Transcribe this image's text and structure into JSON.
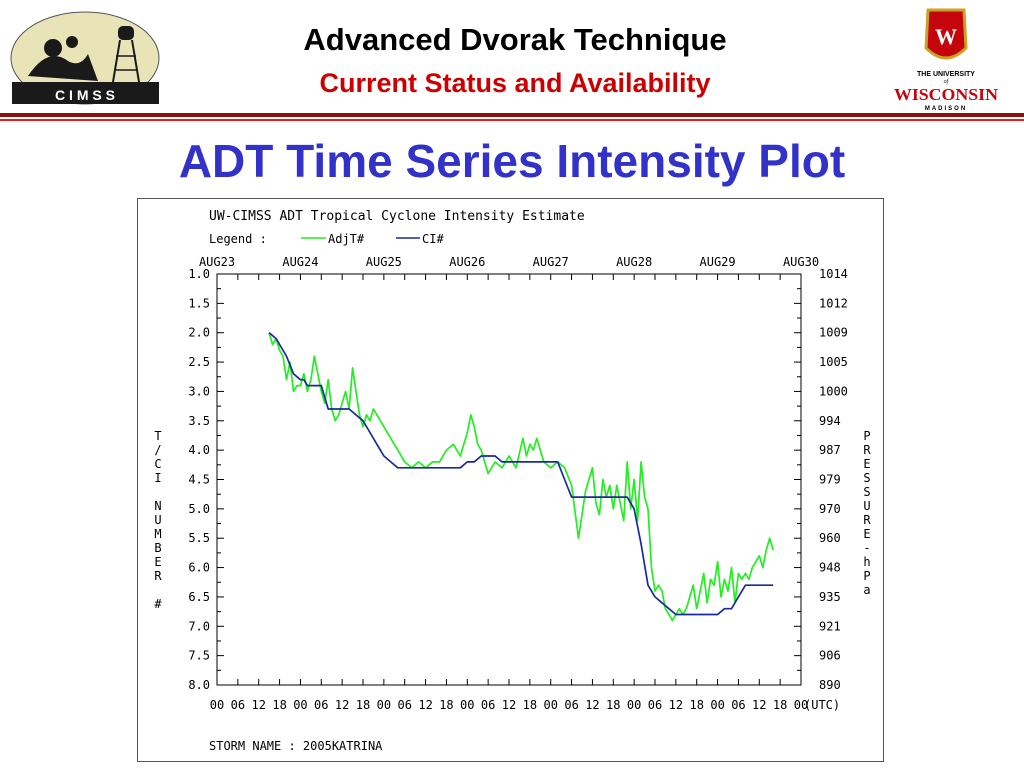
{
  "header": {
    "title": "Advanced Dvorak Technique",
    "subtitle": "Current Status and Availability",
    "left_logo_text": "C I M S S",
    "right_logo_line1": "THE UNIVERSITY",
    "right_logo_of": "of",
    "right_logo_line2": "WISCONSIN",
    "right_logo_line3": "MADISON",
    "right_logo_crest": "W"
  },
  "slide_title": "ADT Time Series Intensity Plot",
  "colors": {
    "adjt": "#22ee22",
    "ci": "#1a2a9a",
    "title_blue": "#3232c8",
    "subtitle_red": "#cc0000",
    "rule_dark": "#8c1010",
    "rule_red": "#e02020"
  },
  "chart_data": {
    "type": "line",
    "title": "UW-CIMSS ADT Tropical Cyclone Intensity Estimate",
    "legend_label": "Legend :",
    "storm_name": "STORM NAME : 2005KATRINA",
    "ylabel_left": "T/CI NUMBER #",
    "ylabel_right": "PRESSURE-hPa",
    "x_unit": "(UTC)",
    "xlim": [
      0,
      168
    ],
    "ylim": [
      1.0,
      8.0
    ],
    "y_inverted": true,
    "grid": false,
    "legend_placement": "top-left",
    "date_ticks": [
      "AUG23",
      "AUG24",
      "AUG25",
      "AUG26",
      "AUG27",
      "AUG28",
      "AUG29",
      "AUG30"
    ],
    "hour_ticks": [
      "00",
      "06",
      "12",
      "18",
      "00",
      "06",
      "12",
      "18",
      "00",
      "06",
      "12",
      "18",
      "00",
      "06",
      "12",
      "18",
      "00",
      "06",
      "12",
      "18",
      "00",
      "06",
      "12",
      "18",
      "00",
      "06",
      "12",
      "18",
      "00"
    ],
    "y_ticks": [
      "1.0",
      "1.5",
      "2.0",
      "2.5",
      "3.0",
      "3.5",
      "4.0",
      "4.5",
      "5.0",
      "5.5",
      "6.0",
      "6.5",
      "7.0",
      "7.5",
      "8.0"
    ],
    "pressure_ticks": [
      "1014",
      "1012",
      "1009",
      "1005",
      "1000",
      "994",
      "987",
      "979",
      "970",
      "960",
      "948",
      "935",
      "921",
      "906",
      "890"
    ],
    "series": [
      {
        "name": "AdjT#",
        "x": [
          15,
          16,
          17,
          18,
          19,
          20,
          21,
          22,
          23,
          24,
          25,
          26,
          27,
          28,
          29,
          30,
          31,
          32,
          33,
          34,
          35,
          36,
          37,
          38,
          39,
          40,
          41,
          42,
          43,
          44,
          45,
          46,
          48,
          50,
          52,
          54,
          56,
          58,
          60,
          62,
          64,
          66,
          68,
          70,
          72,
          73,
          74,
          75,
          76,
          77,
          78,
          80,
          82,
          84,
          86,
          88,
          89,
          90,
          91,
          92,
          94,
          96,
          98,
          100,
          102,
          104,
          106,
          108,
          109,
          110,
          111,
          112,
          113,
          114,
          115,
          116,
          117,
          118,
          119,
          120,
          121,
          122,
          123,
          124,
          125,
          126,
          127,
          128,
          129,
          130,
          131,
          132,
          133,
          134,
          135,
          136,
          137,
          138,
          139,
          140,
          141,
          142,
          143,
          144,
          145,
          146,
          147,
          148,
          149,
          150,
          151,
          152,
          153,
          154,
          155,
          156,
          157,
          158,
          159,
          160
        ],
        "y": [
          2.0,
          2.2,
          2.1,
          2.3,
          2.4,
          2.8,
          2.5,
          3.0,
          2.9,
          2.9,
          2.7,
          3.0,
          2.8,
          2.4,
          2.7,
          3.0,
          3.2,
          2.8,
          3.3,
          3.5,
          3.4,
          3.2,
          3.0,
          3.3,
          2.6,
          3.0,
          3.4,
          3.6,
          3.4,
          3.5,
          3.3,
          3.4,
          3.6,
          3.8,
          4.0,
          4.2,
          4.3,
          4.2,
          4.3,
          4.2,
          4.2,
          4.0,
          3.9,
          4.1,
          3.7,
          3.4,
          3.6,
          3.9,
          4.0,
          4.2,
          4.4,
          4.2,
          4.3,
          4.1,
          4.3,
          3.8,
          4.1,
          3.9,
          4.0,
          3.8,
          4.2,
          4.3,
          4.2,
          4.3,
          4.6,
          5.5,
          4.7,
          4.3,
          4.9,
          5.1,
          4.5,
          4.8,
          4.6,
          5.0,
          4.6,
          4.9,
          5.2,
          4.2,
          5.0,
          4.5,
          5.2,
          4.2,
          4.8,
          5.0,
          6.0,
          6.4,
          6.3,
          6.4,
          6.7,
          6.8,
          6.9,
          6.8,
          6.7,
          6.8,
          6.7,
          6.5,
          6.3,
          6.7,
          6.4,
          6.1,
          6.6,
          6.2,
          6.3,
          5.9,
          6.5,
          6.2,
          6.4,
          6.0,
          6.6,
          6.1,
          6.2,
          6.1,
          6.2,
          6.0,
          5.9,
          5.8,
          6.0,
          5.7,
          5.5,
          5.7
        ]
      },
      {
        "name": "CI#",
        "x": [
          15,
          17,
          18,
          20,
          22,
          24,
          25,
          26,
          28,
          30,
          32,
          34,
          36,
          38,
          40,
          42,
          44,
          46,
          48,
          50,
          52,
          54,
          56,
          58,
          60,
          62,
          64,
          66,
          68,
          70,
          72,
          74,
          76,
          78,
          80,
          82,
          84,
          86,
          88,
          90,
          92,
          94,
          96,
          98,
          100,
          102,
          104,
          106,
          108,
          110,
          112,
          114,
          116,
          118,
          120,
          122,
          124,
          126,
          128,
          130,
          132,
          134,
          136,
          138,
          140,
          142,
          144,
          146,
          148,
          150,
          152,
          154,
          156,
          158,
          160
        ],
        "y": [
          2.0,
          2.1,
          2.2,
          2.4,
          2.7,
          2.8,
          2.8,
          2.9,
          2.9,
          2.9,
          3.3,
          3.3,
          3.3,
          3.3,
          3.4,
          3.5,
          3.7,
          3.9,
          4.1,
          4.2,
          4.3,
          4.3,
          4.3,
          4.3,
          4.3,
          4.3,
          4.3,
          4.3,
          4.3,
          4.3,
          4.2,
          4.2,
          4.1,
          4.1,
          4.1,
          4.2,
          4.2,
          4.2,
          4.2,
          4.2,
          4.2,
          4.2,
          4.2,
          4.2,
          4.5,
          4.8,
          4.8,
          4.8,
          4.8,
          4.8,
          4.8,
          4.8,
          4.8,
          4.8,
          5.0,
          5.6,
          6.3,
          6.5,
          6.6,
          6.7,
          6.8,
          6.8,
          6.8,
          6.8,
          6.8,
          6.8,
          6.8,
          6.7,
          6.7,
          6.5,
          6.3,
          6.3,
          6.3,
          6.3,
          6.3
        ]
      }
    ]
  }
}
